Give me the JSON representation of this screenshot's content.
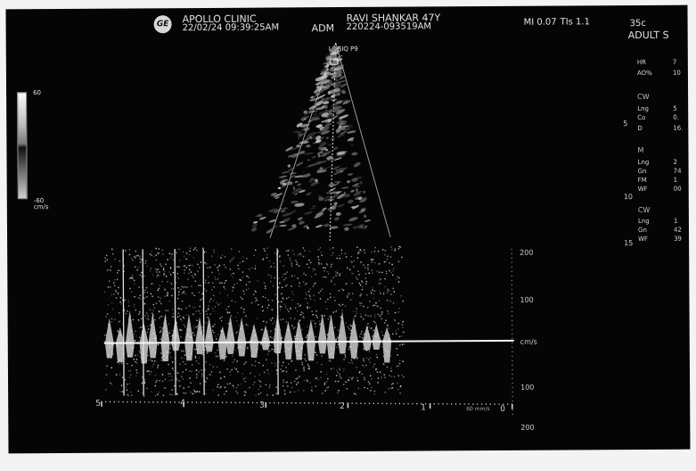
{
  "header": {
    "logo_text": "GE",
    "clinic_name": "APOLLO CLINIC",
    "clinic_datetime": "22/02/24 09:39:25AM",
    "patient": "RAVI SHANKAR 47Y",
    "mode": "ADM",
    "study_id": "220224-093519AM",
    "probe": "LOGIQ P9",
    "mi": "MI 0.07",
    "tis": "TIs 1.1",
    "frame_rate": "35c",
    "preset": "ADULT S"
  },
  "color_scale": {
    "top_label": "60",
    "bottom_label_1": "-60",
    "bottom_label_2": "cm/s"
  },
  "doppler": {
    "scale_labels": [
      "200",
      "100",
      "cm/s",
      "100",
      "200"
    ],
    "time_labels": [
      "5",
      "4",
      "3",
      "2",
      "1",
      "0"
    ],
    "sweep_label": "60 mm/s"
  },
  "measurements": {
    "depth_labels": [
      "5",
      "10",
      "15"
    ],
    "rows": [
      {
        "label": "HR",
        "value": "7"
      },
      {
        "label": "AO%",
        "value": "10"
      },
      {
        "label": "CW",
        "value": ""
      },
      {
        "label": "Lng",
        "value": "5"
      },
      {
        "label": "Co",
        "value": "0."
      },
      {
        "label": "D",
        "value": "16."
      },
      {
        "label": "M",
        "value": ""
      },
      {
        "label": "Lng",
        "value": "2"
      },
      {
        "label": "Gn",
        "value": "74"
      },
      {
        "label": "FM",
        "value": "1"
      },
      {
        "label": "WF",
        "value": "00"
      },
      {
        "label": "CW",
        "value": ""
      },
      {
        "label": "Lng",
        "value": "1"
      },
      {
        "label": "Gn",
        "value": "42"
      },
      {
        "label": "WF",
        "value": "39"
      }
    ]
  }
}
